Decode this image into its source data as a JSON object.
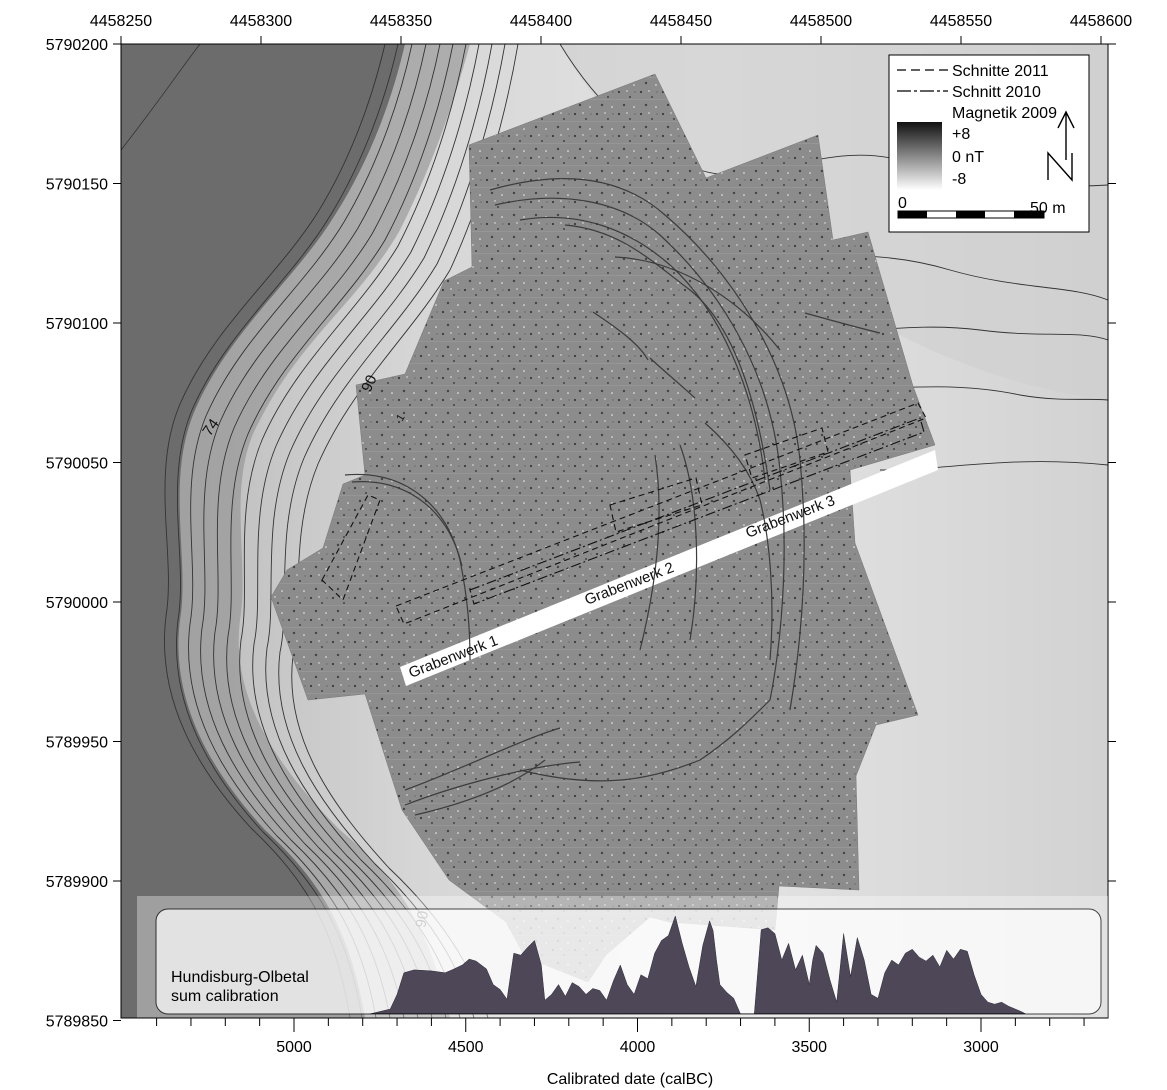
{
  "map": {
    "x_axis_ticks": [
      "4458250",
      "4458300",
      "4458350",
      "4458400",
      "4458450",
      "4458500",
      "4458550",
      "4458600"
    ],
    "y_axis_ticks": [
      "5790200",
      "5790150",
      "5790100",
      "5790050",
      "5790000",
      "5789950",
      "5789900",
      "5789850"
    ],
    "contour_labels": [
      "74",
      "90",
      "06",
      "1"
    ],
    "site_labels": [
      "Grabenwerk 1",
      "Grabenwerk 2",
      "Grabenwerk 3"
    ]
  },
  "legend": {
    "schnitte_2011": "Schnitte 2011",
    "schnitt_2010": "Schnitt 2010",
    "magnetik": "Magnetik 2009",
    "plus": "+8",
    "zero": "0 nT",
    "minus": "-8",
    "scale_start": "0",
    "scale_end": "50 m"
  },
  "inset": {
    "label_line1": "Hundisburg-Olbetal",
    "label_line2": "sum calibration",
    "xlabel": "Calibrated date (calBC)",
    "x_ticks": [
      "5000",
      "4500",
      "4000",
      "3500",
      "3000"
    ],
    "fill_color": "#4d4758"
  },
  "colors": {
    "slope_dark": "#6c6c6c",
    "contour": "#333333",
    "survey": "#8c8c8c"
  },
  "chart_data": {
    "type": "area",
    "title": "",
    "xlabel": "Calibrated date (calBC)",
    "ylabel": "",
    "xlim": [
      5400,
      2650
    ],
    "x_reversed": true,
    "series": [
      {
        "name": "Hundisburg-Olbetal sum calibration",
        "x": [
          4780,
          4720,
          4700,
          4680,
          4650,
          4600,
          4560,
          4540,
          4510,
          4490,
          4470,
          4440,
          4420,
          4400,
          4380,
          4360,
          4340,
          4320,
          4300,
          4280,
          4270,
          4250,
          4230,
          4210,
          4190,
          4170,
          4150,
          4130,
          4110,
          4090,
          4070,
          4050,
          4030,
          4010,
          3990,
          3970,
          3950,
          3930,
          3910,
          3890,
          3870,
          3850,
          3830,
          3810,
          3790,
          3780,
          3770,
          3760,
          3740,
          3720,
          3700,
          3680,
          3660,
          3640,
          3620,
          3600,
          3580,
          3560,
          3540,
          3520,
          3500,
          3490,
          3480,
          3460,
          3440,
          3420,
          3400,
          3380,
          3360,
          3340,
          3320,
          3300,
          3280,
          3260,
          3240,
          3220,
          3200,
          3180,
          3160,
          3140,
          3120,
          3100,
          3080,
          3060,
          3040,
          3020,
          3000,
          2980,
          2960,
          2940,
          2920,
          2900,
          2880,
          2870
        ],
        "y": [
          0,
          0.05,
          0.2,
          0.42,
          0.45,
          0.44,
          0.42,
          0.45,
          0.5,
          0.56,
          0.54,
          0.46,
          0.3,
          0.25,
          0.15,
          0.62,
          0.6,
          0.68,
          0.75,
          0.5,
          0.14,
          0.2,
          0.3,
          0.18,
          0.32,
          0.28,
          0.2,
          0.26,
          0.24,
          0.14,
          0.34,
          0.5,
          0.3,
          0.2,
          0.4,
          0.36,
          0.62,
          0.75,
          0.8,
          1.0,
          0.72,
          0.48,
          0.28,
          0.7,
          0.95,
          0.85,
          0.55,
          0.3,
          0.22,
          0.16,
          0,
          0,
          0,
          0.86,
          0.88,
          0.82,
          0.55,
          0.72,
          0.45,
          0.6,
          0.3,
          0.55,
          0.7,
          0.62,
          0.35,
          0.12,
          0.82,
          0.38,
          0.78,
          0.55,
          0.2,
          0.16,
          0.42,
          0.55,
          0.5,
          0.62,
          0.66,
          0.58,
          0.54,
          0.6,
          0.48,
          0.65,
          0.56,
          0.66,
          0.64,
          0.4,
          0.2,
          0.12,
          0.1,
          0.12,
          0.08,
          0.05,
          0.02,
          0
        ]
      }
    ]
  }
}
